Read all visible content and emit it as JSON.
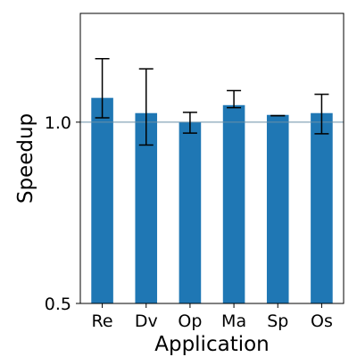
{
  "chart_data": {
    "type": "bar",
    "xlabel": "Application",
    "ylabel": "Speedup",
    "categories": [
      "Re",
      "Dv",
      "Op",
      "Ma",
      "Sp",
      "Os"
    ],
    "values": [
      1.067,
      1.025,
      1.0,
      1.047,
      1.02,
      1.025
    ],
    "error_low": [
      1.012,
      0.937,
      0.97,
      1.04,
      1.018,
      0.968
    ],
    "error_high": [
      1.175,
      1.147,
      1.027,
      1.087,
      1.018,
      1.077
    ],
    "ylim": [
      0.5,
      1.3
    ],
    "yticks": [
      0.5,
      1.0
    ],
    "ytick_labels": [
      "0.5",
      "1.0"
    ],
    "reference_line": 1.0,
    "bar_color": "#1f77b4",
    "reference_line_color": "#6a8fa8",
    "grid": false,
    "legend": "none"
  }
}
